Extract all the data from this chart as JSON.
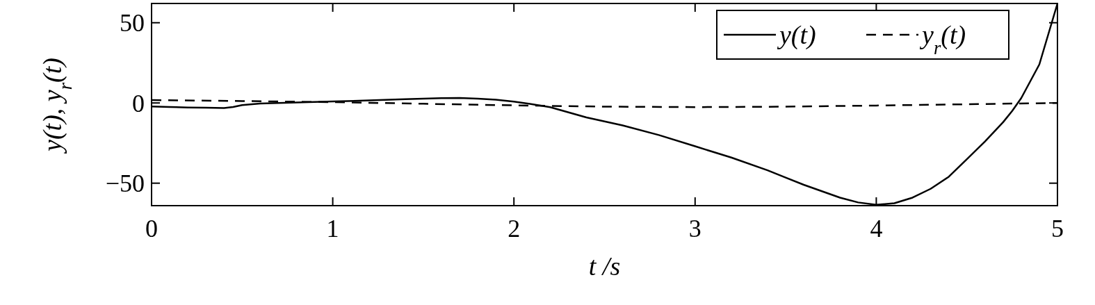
{
  "chart_data": {
    "type": "line",
    "xlabel": "t /s",
    "ylabel": "y(t), y$_{r}$(t)",
    "xlim": [
      0,
      5
    ],
    "xticks": [
      0,
      1,
      2,
      3,
      4,
      5
    ],
    "ylim": [
      -64,
      62
    ],
    "yticks": [
      {
        "value": -50,
        "label": "−50"
      },
      0,
      50
    ],
    "grid": false,
    "legend": "top right",
    "series": [
      {
        "name": "y(t)",
        "color": "#000000",
        "line_style": "solid",
        "x": [
          0,
          0.1,
          0.2,
          0.3,
          0.4,
          0.45,
          0.5,
          0.6,
          0.8,
          1.0,
          1.2,
          1.4,
          1.6,
          1.7,
          1.8,
          1.9,
          2.0,
          2.1,
          2.2,
          2.4,
          2.6,
          2.8,
          3.0,
          3.2,
          3.4,
          3.5,
          3.6,
          3.8,
          3.9,
          4.0,
          4.1,
          4.2,
          4.3,
          4.4,
          4.5,
          4.6,
          4.7,
          4.75,
          4.8,
          4.9,
          5.0
        ],
        "values": [
          -2.2,
          -2.5,
          -2.8,
          -3,
          -3.2,
          -2.5,
          -1.3,
          -0.3,
          0.3,
          0.9,
          1.6,
          2.4,
          3,
          3.1,
          2.7,
          2,
          0.8,
          -0.8,
          -2.6,
          -9,
          -14,
          -20,
          -27,
          -34,
          -42,
          -46.5,
          -51,
          -59,
          -62,
          -63.5,
          -62.5,
          -59,
          -53.5,
          -46,
          -35,
          -24,
          -12,
          -5,
          3,
          24,
          62
        ]
      },
      {
        "name": "y$_{r}$(t)",
        "color": "#000000",
        "line_style": "dashed",
        "x": [
          0,
          0.5,
          1,
          1.5,
          2,
          2.5,
          3,
          3.5,
          4,
          4.5,
          5
        ],
        "values": [
          1.8,
          1.2,
          0.5,
          -0.5,
          -1.5,
          -2.3,
          -2.6,
          -2.3,
          -1.6,
          -0.8,
          0
        ]
      }
    ]
  }
}
